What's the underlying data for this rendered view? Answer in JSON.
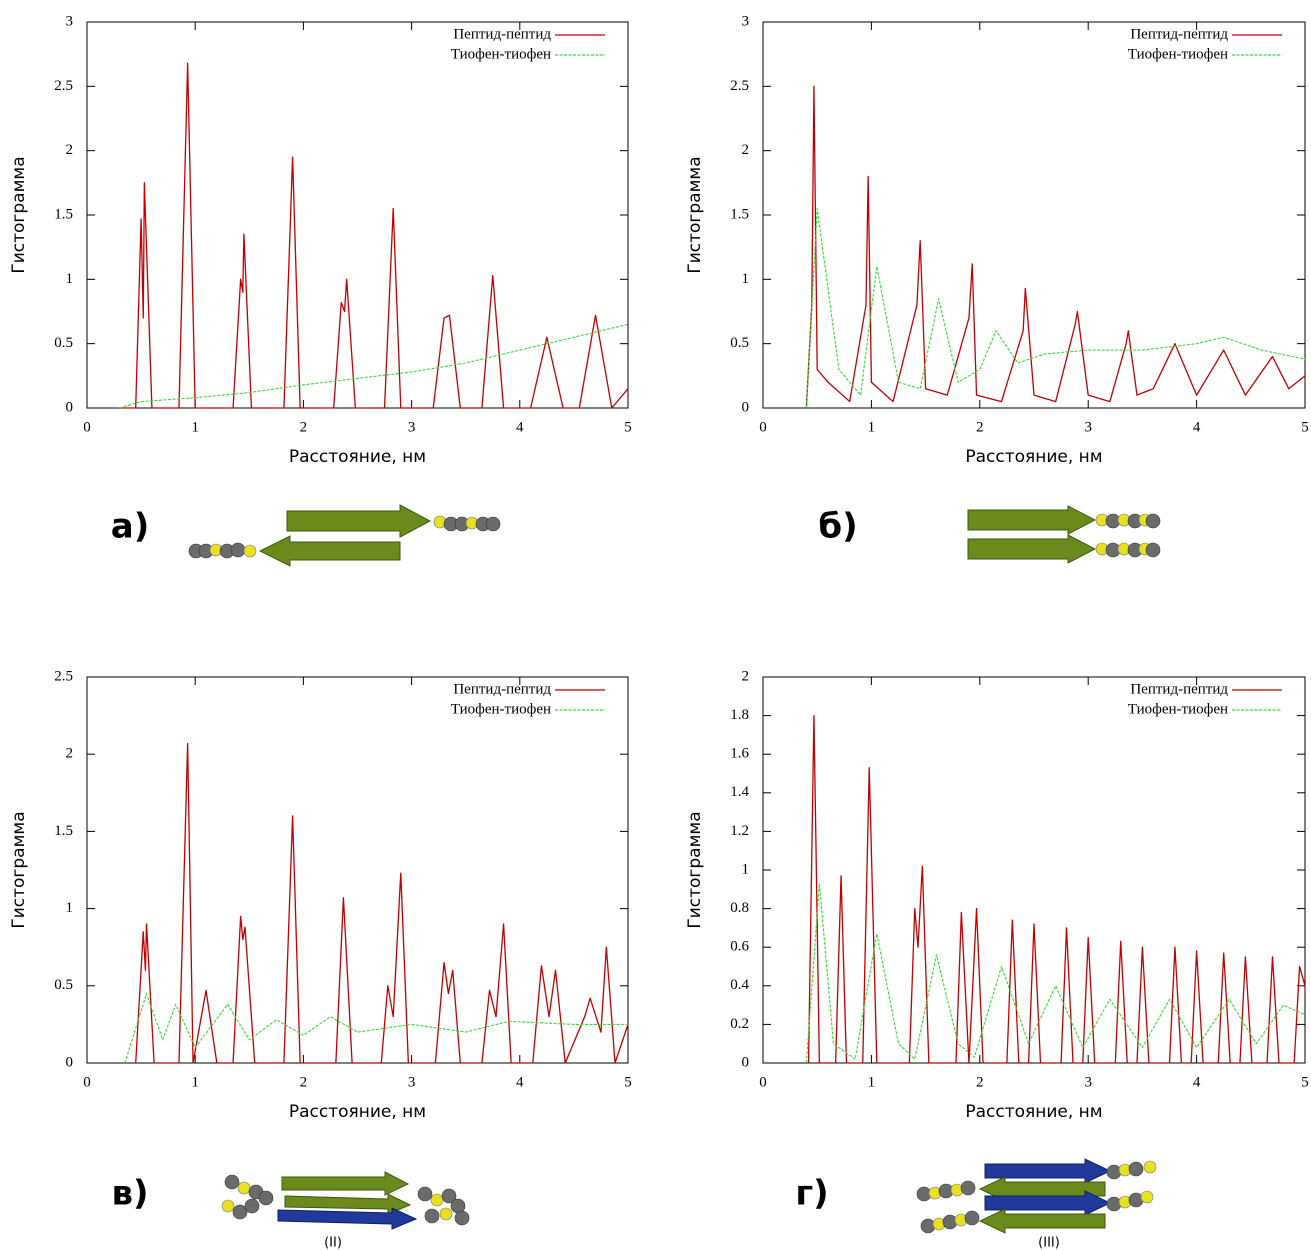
{
  "chart_data": [
    {
      "type": "line",
      "label": "а)",
      "xlabel": "Расстояние, нм",
      "ylabel": "Гистограмма",
      "xlim": [
        0,
        5
      ],
      "ylim": [
        0,
        3
      ],
      "xticks": [
        0,
        1,
        2,
        3,
        4,
        5
      ],
      "yticks": [
        0,
        0.5,
        1,
        1.5,
        2,
        2.5,
        3
      ],
      "legend": "upper right",
      "series": [
        {
          "name": "Пептид-пептид",
          "color": "#c00000",
          "x": [
            0.3,
            0.45,
            0.5,
            0.52,
            0.53,
            0.6,
            0.85,
            0.93,
            1.0,
            1.35,
            1.42,
            1.44,
            1.45,
            1.52,
            1.82,
            1.9,
            1.97,
            2.28,
            2.35,
            2.38,
            2.4,
            2.48,
            2.75,
            2.83,
            2.9,
            3.2,
            3.3,
            3.35,
            3.45,
            3.65,
            3.75,
            3.85,
            4.1,
            4.25,
            4.4,
            4.55,
            4.7,
            4.85,
            5.0
          ],
          "values": [
            0,
            0,
            1.47,
            0.7,
            1.75,
            0,
            0,
            2.68,
            0,
            0,
            1.0,
            0.9,
            1.35,
            0,
            0,
            1.95,
            0,
            0,
            0.82,
            0.75,
            1.0,
            0,
            0,
            1.55,
            0,
            0,
            0.7,
            0.72,
            0,
            0,
            1.03,
            0,
            0,
            0.55,
            0,
            0,
            0.72,
            0,
            0.15
          ]
        },
        {
          "name": "Тиофен-тиофен",
          "color": "#33dd33",
          "x": [
            0.3,
            0.5,
            1,
            1.5,
            2,
            2.5,
            3,
            3.5,
            4,
            4.5,
            5
          ],
          "values": [
            0,
            0.05,
            0.08,
            0.12,
            0.18,
            0.23,
            0.28,
            0.35,
            0.45,
            0.55,
            0.65
          ]
        }
      ]
    },
    {
      "type": "line",
      "label": "б)",
      "xlabel": "Расстояние, нм",
      "ylabel": "Гистограмма",
      "xlim": [
        0,
        5
      ],
      "ylim": [
        0,
        3
      ],
      "xticks": [
        0,
        1,
        2,
        3,
        4,
        5
      ],
      "yticks": [
        0,
        0.5,
        1,
        1.5,
        2,
        2.5,
        3
      ],
      "legend": "upper right",
      "series": [
        {
          "name": "Пептид-пептид",
          "color": "#c00000",
          "x": [
            0.4,
            0.45,
            0.47,
            0.5,
            0.6,
            0.8,
            0.95,
            0.97,
            1.0,
            1.2,
            1.42,
            1.45,
            1.5,
            1.7,
            1.9,
            1.93,
            1.97,
            2.2,
            2.4,
            2.42,
            2.5,
            2.7,
            2.88,
            2.9,
            3.0,
            3.2,
            3.35,
            3.37,
            3.45,
            3.6,
            3.8,
            4.0,
            4.25,
            4.45,
            4.7,
            4.85,
            5.0
          ],
          "values": [
            0,
            0.8,
            2.5,
            0.3,
            0.2,
            0.05,
            0.8,
            1.8,
            0.2,
            0.05,
            0.8,
            1.3,
            0.15,
            0.1,
            0.7,
            1.12,
            0.1,
            0.05,
            0.6,
            0.93,
            0.1,
            0.05,
            0.65,
            0.75,
            0.1,
            0.05,
            0.5,
            0.6,
            0.1,
            0.15,
            0.5,
            0.1,
            0.45,
            0.1,
            0.4,
            0.15,
            0.25
          ]
        },
        {
          "name": "Тиофен-тиофен",
          "color": "#33dd33",
          "x": [
            0.4,
            0.5,
            0.7,
            0.9,
            1.05,
            1.25,
            1.45,
            1.62,
            1.8,
            2.0,
            2.15,
            2.35,
            2.6,
            3.0,
            3.5,
            4.0,
            4.25,
            4.6,
            5.0
          ],
          "values": [
            0,
            1.55,
            0.3,
            0.1,
            1.1,
            0.2,
            0.15,
            0.85,
            0.2,
            0.3,
            0.6,
            0.35,
            0.42,
            0.45,
            0.45,
            0.5,
            0.55,
            0.45,
            0.38
          ]
        }
      ]
    },
    {
      "type": "line",
      "label": "в)",
      "structure_label": "(II)",
      "xlabel": "Расстояние, нм",
      "ylabel": "Гистограмма",
      "xlim": [
        0,
        5
      ],
      "ylim": [
        0,
        2.5
      ],
      "xticks": [
        0,
        1,
        2,
        3,
        4,
        5
      ],
      "yticks": [
        0,
        0.5,
        1,
        1.5,
        2,
        2.5
      ],
      "legend": "upper right",
      "series": [
        {
          "name": "Пептид-пептид",
          "color": "#c00000",
          "x": [
            0.45,
            0.52,
            0.54,
            0.55,
            0.62,
            0.85,
            0.93,
            0.98,
            1.1,
            1.2,
            1.35,
            1.42,
            1.44,
            1.46,
            1.55,
            1.82,
            1.9,
            1.97,
            2.3,
            2.37,
            2.45,
            2.72,
            2.78,
            2.83,
            2.9,
            2.97,
            3.22,
            3.3,
            3.34,
            3.38,
            3.45,
            3.65,
            3.72,
            3.78,
            3.85,
            3.92,
            4.12,
            4.2,
            4.27,
            4.33,
            4.42,
            4.6,
            4.65,
            4.75,
            4.8,
            4.88,
            5.0
          ],
          "values": [
            0,
            0.85,
            0.6,
            0.9,
            0,
            0,
            2.07,
            0,
            0.47,
            0,
            0,
            0.95,
            0.8,
            0.88,
            0,
            0,
            1.6,
            0,
            0,
            1.07,
            0,
            0,
            0.5,
            0.3,
            1.23,
            0,
            0,
            0.65,
            0.45,
            0.6,
            0,
            0,
            0.47,
            0.3,
            0.9,
            0,
            0,
            0.63,
            0.3,
            0.6,
            0,
            0.3,
            0.42,
            0.2,
            0.75,
            0,
            0.25
          ]
        },
        {
          "name": "Тиофен-тиофен",
          "color": "#33dd33",
          "x": [
            0.35,
            0.55,
            0.7,
            0.82,
            1.0,
            1.3,
            1.5,
            1.75,
            2.0,
            2.25,
            2.5,
            3.0,
            3.5,
            3.9,
            4.5,
            5.0
          ],
          "values": [
            0,
            0.45,
            0.15,
            0.38,
            0.1,
            0.38,
            0.15,
            0.28,
            0.18,
            0.3,
            0.2,
            0.25,
            0.2,
            0.27,
            0.25,
            0.25
          ]
        }
      ]
    },
    {
      "type": "line",
      "label": "г)",
      "structure_label": "(III)",
      "xlabel": "Расстояние, нм",
      "ylabel": "Гистограмма",
      "xlim": [
        0,
        5
      ],
      "ylim": [
        0,
        2
      ],
      "xticks": [
        0,
        1,
        2,
        3,
        4,
        5
      ],
      "yticks": [
        0,
        0.2,
        0.4,
        0.6,
        0.8,
        1,
        1.2,
        1.4,
        1.6,
        1.8,
        2
      ],
      "legend": "upper right",
      "series": [
        {
          "name": "Пептид-пептид",
          "color": "#c00000",
          "x": [
            0.42,
            0.47,
            0.52,
            0.67,
            0.72,
            0.77,
            0.92,
            0.98,
            1.05,
            1.35,
            1.4,
            1.43,
            1.47,
            1.53,
            1.78,
            1.83,
            1.9,
            1.97,
            2.03,
            2.25,
            2.3,
            2.36,
            2.45,
            2.5,
            2.56,
            2.75,
            2.8,
            2.86,
            2.95,
            3.0,
            3.06,
            3.25,
            3.3,
            3.36,
            3.45,
            3.5,
            3.56,
            3.75,
            3.8,
            3.86,
            3.95,
            4.0,
            4.06,
            4.2,
            4.25,
            4.31,
            4.4,
            4.45,
            4.51,
            4.65,
            4.7,
            4.76,
            4.9,
            4.95,
            5.0
          ],
          "values": [
            0,
            1.8,
            0,
            0,
            0.97,
            0,
            0,
            1.53,
            0,
            0,
            0.8,
            0.6,
            1.02,
            0,
            0,
            0.78,
            0,
            0.8,
            0,
            0,
            0.74,
            0,
            0,
            0.72,
            0,
            0,
            0.7,
            0,
            0,
            0.65,
            0,
            0,
            0.63,
            0,
            0,
            0.6,
            0,
            0,
            0.6,
            0,
            0,
            0.58,
            0,
            0,
            0.57,
            0,
            0,
            0.55,
            0,
            0,
            0.55,
            0,
            0,
            0.5,
            0.4
          ]
        },
        {
          "name": "Тиофен-тиофен",
          "color": "#33dd33",
          "x": [
            0.4,
            0.52,
            0.65,
            0.85,
            1.05,
            1.25,
            1.4,
            1.6,
            1.8,
            1.95,
            2.2,
            2.45,
            2.7,
            2.95,
            3.2,
            3.5,
            3.75,
            4.0,
            4.3,
            4.55,
            4.8,
            5.0
          ],
          "values": [
            0,
            0.93,
            0.1,
            0.02,
            0.67,
            0.1,
            0.02,
            0.56,
            0.1,
            0.03,
            0.5,
            0.1,
            0.4,
            0.08,
            0.33,
            0.08,
            0.33,
            0.08,
            0.33,
            0.1,
            0.3,
            0.25
          ]
        }
      ]
    }
  ]
}
